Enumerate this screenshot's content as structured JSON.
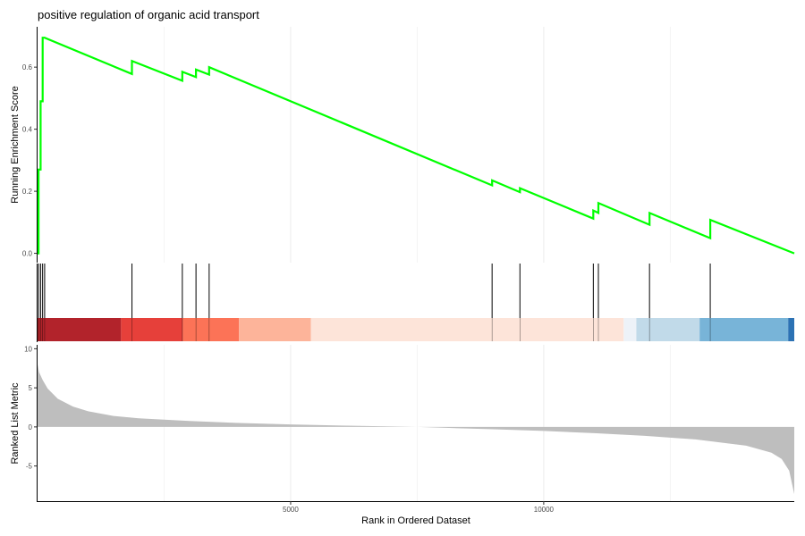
{
  "chart_data": {
    "type": "line",
    "title": "positive regulation of organic acid transport",
    "xlabel": "Rank in Ordered Dataset",
    "xlim": [
      0,
      14950
    ],
    "x_ticks": [
      5000,
      10000
    ],
    "x_tick_labels": [
      "5000",
      "10000"
    ],
    "grid": "vertical major and minor gridlines",
    "panels": [
      {
        "id": "running-score",
        "ylabel": "Running Enrichment Score",
        "ylim": [
          -0.03,
          0.73
        ],
        "y_ticks": [
          0.0,
          0.2,
          0.4,
          0.6
        ],
        "y_tick_labels": [
          "0.0",
          "0.2",
          "0.4",
          "0.6"
        ],
        "line_color": "#00ff00",
        "series": [
          {
            "x": [
              0,
              20,
              20,
              60,
              60,
              100,
              100,
              140,
              140,
              1865,
              1865,
              2860,
              2860,
              3130,
              3130,
              3390,
              3390,
              8980,
              8980,
              9530,
              9530,
              10980,
              10980,
              11080,
              11080,
              12090,
              12090,
              13290,
              13290,
              14950
            ],
            "y": [
              0.0,
              0.0,
              0.27,
              0.27,
              0.49,
              0.49,
              0.695,
              0.695,
              0.695,
              0.578,
              0.62,
              0.556,
              0.585,
              0.568,
              0.592,
              0.576,
              0.6,
              0.219,
              0.235,
              0.197,
              0.21,
              0.112,
              0.138,
              0.13,
              0.162,
              0.092,
              0.13,
              0.049,
              0.108,
              0.0
            ]
          }
        ]
      },
      {
        "id": "gene-hits",
        "hit_positions": [
          20,
          60,
          100,
          140,
          1865,
          2860,
          3130,
          3390,
          8980,
          9530,
          10980,
          11080,
          12090,
          13290
        ],
        "heat_bands": [
          {
            "from": 0,
            "to": 1650,
            "color": "#b2232b"
          },
          {
            "from": 1650,
            "to": 2870,
            "color": "#e6403a"
          },
          {
            "from": 2870,
            "to": 3980,
            "color": "#fc7357"
          },
          {
            "from": 3980,
            "to": 5400,
            "color": "#fdb49a"
          },
          {
            "from": 5400,
            "to": 11580,
            "color": "#fde4d9"
          },
          {
            "from": 11580,
            "to": 11830,
            "color": "#edf2f8"
          },
          {
            "from": 11830,
            "to": 13080,
            "color": "#c1dae9"
          },
          {
            "from": 13080,
            "to": 14830,
            "color": "#78b4d8"
          },
          {
            "from": 14830,
            "to": 14950,
            "color": "#2c72b4"
          }
        ]
      },
      {
        "id": "ranked-metric",
        "type": "area",
        "ylabel": "Ranked List Metric",
        "ylim": [
          -9.5,
          10.5
        ],
        "y_ticks": [
          -5,
          0,
          5,
          10
        ],
        "y_tick_labels": [
          "-5",
          "0",
          "5",
          "10"
        ],
        "fill_color": "#bebebe",
        "x": [
          0,
          30,
          100,
          200,
          400,
          700,
          1000,
          1500,
          2000,
          3000,
          4000,
          5000,
          6000,
          7000,
          7500,
          8000,
          9000,
          10000,
          11000,
          12000,
          13000,
          14000,
          14500,
          14700,
          14850,
          14950
        ],
        "y": [
          8.0,
          7.0,
          6.0,
          4.9,
          3.6,
          2.6,
          2.0,
          1.4,
          1.1,
          0.75,
          0.5,
          0.32,
          0.17,
          0.05,
          0.0,
          -0.1,
          -0.3,
          -0.52,
          -0.8,
          -1.15,
          -1.6,
          -2.4,
          -3.3,
          -4.1,
          -5.6,
          -8.6
        ]
      }
    ]
  }
}
